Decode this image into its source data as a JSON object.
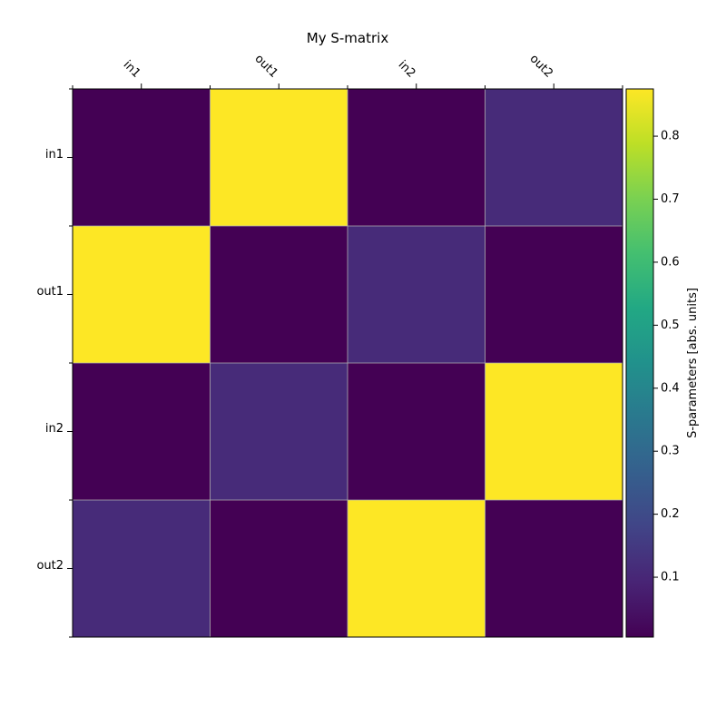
{
  "chart_data": {
    "type": "heatmap",
    "title": "My S-matrix",
    "columns": [
      "in1",
      "out1",
      "in2",
      "out2"
    ],
    "rows": [
      "in1",
      "out1",
      "in2",
      "out2"
    ],
    "values": [
      [
        0.005,
        0.875,
        0.005,
        0.11
      ],
      [
        0.875,
        0.005,
        0.11,
        0.005
      ],
      [
        0.005,
        0.11,
        0.005,
        0.875
      ],
      [
        0.11,
        0.005,
        0.875,
        0.005
      ]
    ],
    "colormap": "viridis",
    "colorbar": {
      "label": "S-parameters [abs. units]",
      "range": [
        0.005,
        0.875
      ],
      "ticks": [
        0.1,
        0.2,
        0.3,
        0.4,
        0.5,
        0.6,
        0.7,
        0.8
      ]
    },
    "grid": true
  }
}
